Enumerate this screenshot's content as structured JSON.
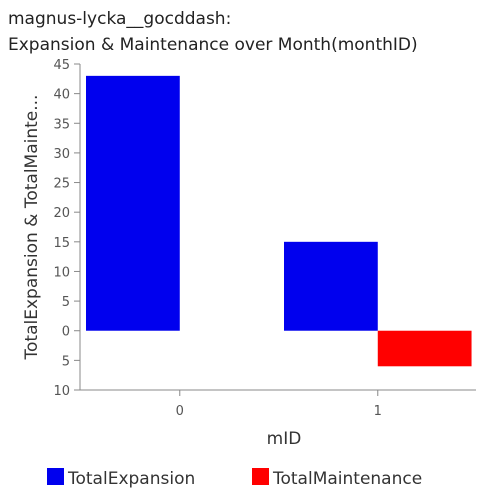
{
  "chart_data": {
    "type": "bar",
    "title_lines": [
      "magnus-lycka__gocddash:",
      "Expansion & Maintenance over Month(monthID)"
    ],
    "xlabel": "mID",
    "ylabel": "TotalExpansion & TotalMainte...",
    "categories": [
      "0",
      "1"
    ],
    "series": [
      {
        "name": "TotalExpansion",
        "color": "#0000ee",
        "values": [
          43,
          15
        ]
      },
      {
        "name": "TotalMaintenance",
        "color": "#ff0000",
        "values": [
          0,
          -6
        ]
      }
    ],
    "ylim": [
      -10,
      45
    ],
    "y_ticks": [
      45,
      40,
      35,
      30,
      25,
      20,
      15,
      10,
      5,
      0,
      -5,
      -10
    ],
    "y_tick_labels": [
      "45",
      "40",
      "35",
      "30",
      "25",
      "20",
      "15",
      "10",
      "5",
      "0",
      "5",
      "10"
    ],
    "grid": false,
    "legend_position": "bottom"
  }
}
